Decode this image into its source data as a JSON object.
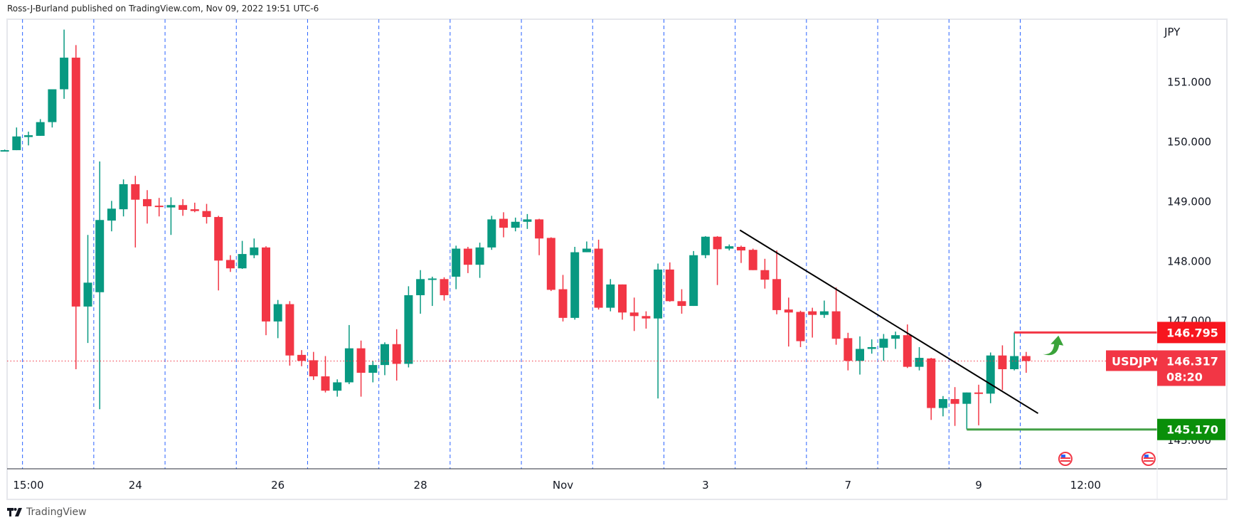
{
  "header": {
    "attribution": "Ross-J-Burland published on TradingView.com, Nov 09, 2022 19:51 UTC-6"
  },
  "footer": {
    "brand": "TradingView",
    "logo_icon": "tradingview-logo-icon"
  },
  "colors": {
    "up": "#089981",
    "down": "#f23645",
    "resistance": "#f23645",
    "support": "#43a047",
    "support_label": "#0a8f0a",
    "resistance_label": "#f7161f",
    "trendline": "#000000",
    "day_separator": "#2962ff",
    "arrow": "#3aa33a"
  },
  "chart_data": {
    "type": "candlestick",
    "symbol": "USDJPY",
    "currency": "JPY",
    "timeframe_note": "",
    "ylim": [
      144.55,
      152.1
    ],
    "y_ticks": [
      "151.000",
      "150.000",
      "149.000",
      "148.000",
      "147.000",
      "145.000"
    ],
    "x_labels": [
      {
        "text": "15:00",
        "bar": 2
      },
      {
        "text": "24",
        "bar": 11
      },
      {
        "text": "26",
        "bar": 23
      },
      {
        "text": "28",
        "bar": 35
      },
      {
        "text": "Nov",
        "bar": 47
      },
      {
        "text": "3",
        "bar": 59
      },
      {
        "text": "7",
        "bar": 71
      },
      {
        "text": "9",
        "bar": 82
      },
      {
        "text": "12:00",
        "bar": 91
      }
    ],
    "ohlc": [
      [
        149.84,
        149.86,
        149.83,
        149.85
      ],
      [
        149.85,
        150.23,
        149.85,
        150.08
      ],
      [
        150.07,
        150.16,
        149.93,
        150.1
      ],
      [
        150.09,
        150.37,
        150.09,
        150.32
      ],
      [
        150.32,
        150.87,
        150.23,
        150.87
      ],
      [
        150.87,
        151.87,
        150.71,
        151.4
      ],
      [
        151.4,
        151.61,
        146.18,
        147.23
      ],
      [
        147.23,
        148.43,
        146.62,
        147.63
      ],
      [
        147.47,
        149.66,
        145.51,
        148.68
      ],
      [
        148.67,
        149.0,
        148.49,
        148.87
      ],
      [
        148.86,
        149.36,
        148.74,
        149.28
      ],
      [
        149.28,
        149.42,
        148.22,
        149.02
      ],
      [
        149.03,
        149.18,
        148.62,
        148.91
      ],
      [
        148.92,
        149.05,
        148.74,
        148.9
      ],
      [
        148.89,
        149.06,
        148.43,
        148.93
      ],
      [
        148.93,
        149.03,
        148.75,
        148.85
      ],
      [
        148.86,
        148.97,
        148.81,
        148.83
      ],
      [
        148.83,
        148.95,
        148.62,
        148.73
      ],
      [
        148.73,
        148.75,
        147.5,
        148.0
      ],
      [
        148.01,
        148.09,
        147.81,
        147.87
      ],
      [
        147.87,
        148.33,
        147.86,
        148.11
      ],
      [
        148.09,
        148.37,
        148.04,
        148.22
      ],
      [
        148.22,
        148.24,
        146.75,
        146.98
      ],
      [
        146.98,
        147.34,
        146.7,
        147.27
      ],
      [
        147.27,
        147.32,
        146.24,
        146.41
      ],
      [
        146.42,
        146.5,
        146.23,
        146.32
      ],
      [
        146.33,
        146.47,
        146.0,
        146.06
      ],
      [
        146.06,
        146.4,
        145.79,
        145.82
      ],
      [
        145.82,
        146.01,
        145.72,
        145.96
      ],
      [
        145.96,
        146.92,
        145.93,
        146.53
      ],
      [
        146.53,
        146.66,
        145.72,
        146.12
      ],
      [
        146.12,
        146.32,
        145.96,
        146.25
      ],
      [
        146.25,
        146.63,
        146.08,
        146.6
      ],
      [
        146.6,
        146.85,
        145.99,
        146.27
      ],
      [
        146.27,
        147.57,
        146.21,
        147.42
      ],
      [
        147.42,
        147.84,
        147.11,
        147.69
      ],
      [
        147.69,
        147.73,
        147.24,
        147.7
      ],
      [
        147.69,
        147.72,
        147.33,
        147.42
      ],
      [
        147.73,
        148.25,
        147.52,
        148.2
      ],
      [
        148.2,
        148.23,
        147.79,
        147.93
      ],
      [
        147.93,
        148.3,
        147.71,
        148.22
      ],
      [
        148.22,
        148.75,
        148.18,
        148.69
      ],
      [
        148.7,
        148.81,
        148.39,
        148.55
      ],
      [
        148.55,
        148.72,
        148.49,
        148.65
      ],
      [
        148.65,
        148.78,
        148.53,
        148.69
      ],
      [
        148.69,
        148.7,
        148.09,
        148.37
      ],
      [
        148.38,
        148.39,
        147.49,
        147.51
      ],
      [
        147.52,
        147.76,
        146.98,
        147.04
      ],
      [
        147.04,
        148.23,
        147.01,
        148.14
      ],
      [
        148.14,
        148.32,
        148.14,
        148.2
      ],
      [
        148.2,
        148.35,
        147.18,
        147.21
      ],
      [
        147.21,
        147.69,
        147.15,
        147.6
      ],
      [
        147.6,
        147.6,
        147.01,
        147.13
      ],
      [
        147.13,
        147.38,
        146.82,
        147.07
      ],
      [
        147.07,
        147.15,
        146.86,
        147.03
      ],
      [
        147.03,
        147.95,
        145.69,
        147.85
      ],
      [
        147.85,
        147.97,
        147.31,
        147.32
      ],
      [
        147.32,
        147.52,
        147.11,
        147.24
      ],
      [
        147.24,
        148.16,
        147.24,
        148.09
      ],
      [
        148.09,
        148.41,
        148.04,
        148.4
      ],
      [
        148.4,
        148.41,
        147.59,
        148.19
      ],
      [
        148.2,
        148.27,
        148.17,
        148.24
      ],
      [
        148.23,
        148.25,
        147.96,
        148.17
      ],
      [
        148.18,
        148.2,
        147.84,
        147.84
      ],
      [
        147.84,
        148.03,
        147.53,
        147.68
      ],
      [
        147.69,
        148.17,
        147.1,
        147.17
      ],
      [
        147.18,
        147.38,
        146.56,
        147.13
      ],
      [
        147.14,
        147.16,
        146.55,
        146.65
      ],
      [
        147.15,
        147.21,
        146.71,
        147.09
      ],
      [
        147.09,
        147.33,
        147.04,
        147.15
      ],
      [
        147.15,
        147.55,
        146.59,
        146.69
      ],
      [
        146.7,
        146.79,
        146.16,
        146.32
      ],
      [
        146.32,
        146.73,
        146.09,
        146.52
      ],
      [
        146.52,
        146.68,
        146.44,
        146.55
      ],
      [
        146.54,
        146.77,
        146.32,
        146.69
      ],
      [
        146.69,
        146.81,
        146.52,
        146.75
      ],
      [
        146.75,
        146.93,
        146.2,
        146.22
      ],
      [
        146.22,
        146.55,
        146.16,
        146.37
      ],
      [
        146.36,
        146.37,
        145.33,
        145.53
      ],
      [
        145.53,
        145.73,
        145.39,
        145.68
      ],
      [
        145.68,
        145.88,
        145.23,
        145.6
      ],
      [
        145.6,
        145.79,
        145.17,
        145.79
      ],
      [
        145.79,
        145.92,
        145.24,
        145.78
      ],
      [
        145.77,
        146.46,
        145.61,
        146.41
      ],
      [
        146.41,
        146.58,
        145.83,
        146.18
      ],
      [
        146.18,
        146.795,
        146.16,
        146.4
      ],
      [
        146.4,
        146.47,
        146.12,
        146.317
      ]
    ],
    "day_separators_after_bar": [
      1,
      7,
      13,
      19,
      25,
      31,
      37,
      43,
      49,
      55,
      61,
      67,
      73,
      79,
      85
    ],
    "current_price": {
      "symbol_label": "USDJPY",
      "value": "146.317",
      "countdown": "08:20",
      "price": 146.317
    },
    "levels": [
      {
        "name": "resistance",
        "label": "146.795",
        "price": 146.795,
        "from_bar": 85
      },
      {
        "name": "support",
        "label": "145.170",
        "price": 145.17,
        "from_bar": 81
      }
    ],
    "trendline": {
      "from": {
        "bar": 61.9,
        "price": 148.51
      },
      "to": {
        "bar": 87,
        "price": 145.44
      }
    },
    "annotation": {
      "icon": "curved-up-arrow-icon",
      "bar": 88,
      "price": 146.6
    },
    "event_icons": [
      {
        "icon": "us-flag-icon",
        "bar": 89.3
      },
      {
        "icon": "us-flag-icon",
        "bar": 96.3
      }
    ],
    "grid": false
  }
}
